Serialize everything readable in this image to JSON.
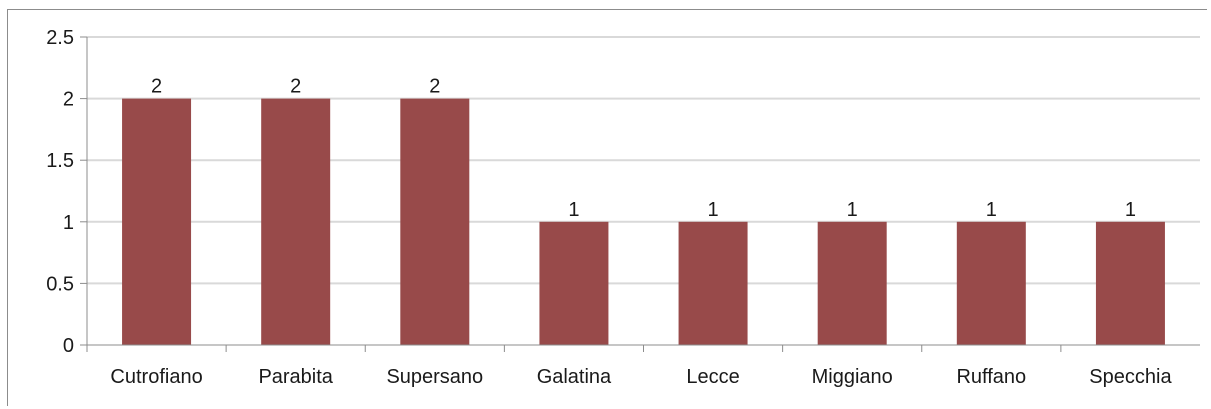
{
  "chart_data": {
    "type": "bar",
    "categories": [
      "Cutrofiano",
      "Parabita",
      "Supersano",
      "Galatina",
      "Lecce",
      "Miggiano",
      "Ruffano",
      "Specchia"
    ],
    "values": [
      2,
      2,
      2,
      1,
      1,
      1,
      1,
      1
    ],
    "data_labels": [
      "2",
      "2",
      "2",
      "1",
      "1",
      "1",
      "1",
      "1"
    ],
    "yticks": [
      "0",
      "0.5",
      "1",
      "1.5",
      "2",
      "2.5"
    ],
    "ytick_values": [
      0,
      0.5,
      1,
      1.5,
      2,
      2.5
    ],
    "ylim": [
      0,
      2.5
    ],
    "grid": true,
    "legend": "none",
    "colors": {
      "bar": "#984a4a",
      "grid": "#d9d9d9",
      "axis": "#8c8c8c"
    }
  }
}
